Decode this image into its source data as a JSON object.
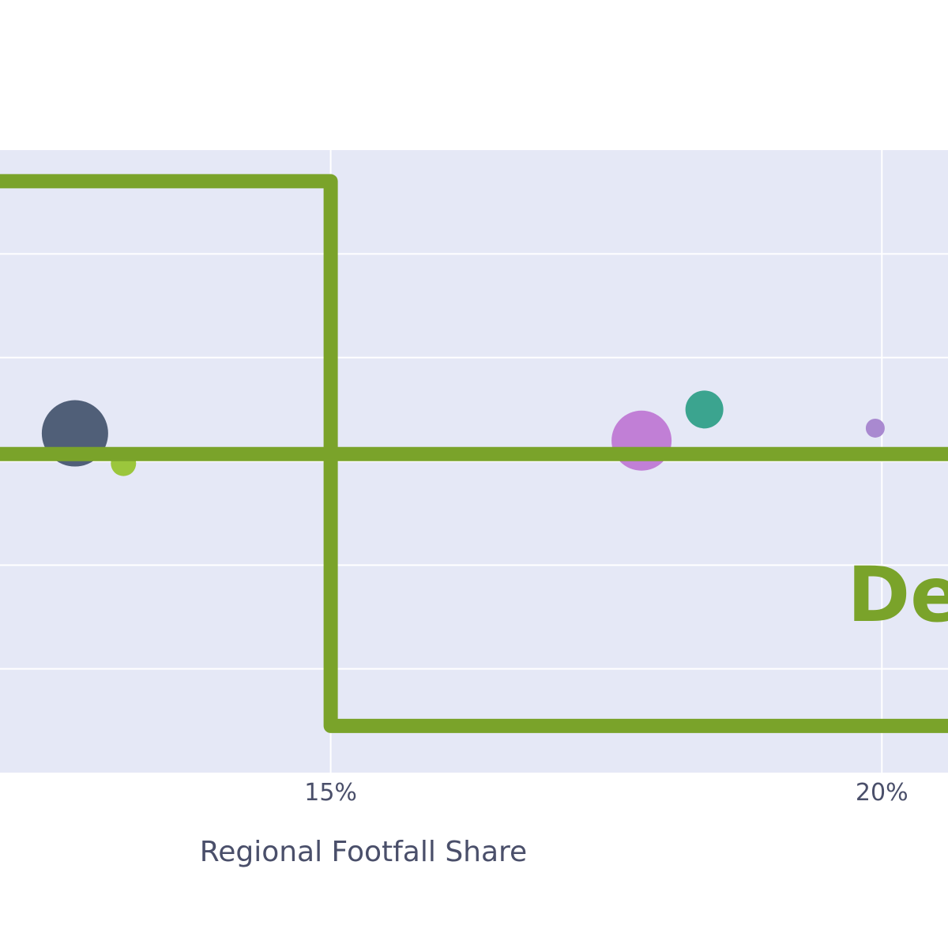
{
  "chart_data": {
    "type": "scatter",
    "title": "",
    "xlabel": "Regional Footfall Share",
    "ylabel": "",
    "xlim": [
      12.0,
      20.6
    ],
    "ylim": [
      0,
      6
    ],
    "x_ticks": [
      {
        "value": 15,
        "label": "15%"
      },
      {
        "value": 20,
        "label": "20%"
      }
    ],
    "y_grid": [
      1,
      2,
      3,
      4,
      5
    ],
    "grid": true,
    "legend": "none",
    "plot_background": "#e5e8f6",
    "grid_color": "#ffffff",
    "guide_line_color": "#7aa32a",
    "guide_path": [
      {
        "x": 12.0,
        "y": 5.7
      },
      {
        "x": 15.0,
        "y": 5.7
      },
      {
        "x": 15.0,
        "y": 0.45
      },
      {
        "x": 20.6,
        "y": 0.45
      }
    ],
    "guide_hline": {
      "y": 3.07
    },
    "quadrant_label": {
      "text": "Def",
      "x": 20.08,
      "y": 1.75,
      "color": "#7aa32a"
    },
    "points": [
      {
        "x": 12.68,
        "y": 3.27,
        "size": 42,
        "color": "#505f78"
      },
      {
        "x": 13.12,
        "y": 2.98,
        "size": 16,
        "color": "#9bc63c"
      },
      {
        "x": 17.82,
        "y": 3.2,
        "size": 38,
        "color": "#c17fd6"
      },
      {
        "x": 18.39,
        "y": 3.5,
        "size": 24,
        "color": "#3ba48f"
      },
      {
        "x": 19.94,
        "y": 3.32,
        "size": 12,
        "color": "#a989d0"
      }
    ]
  }
}
